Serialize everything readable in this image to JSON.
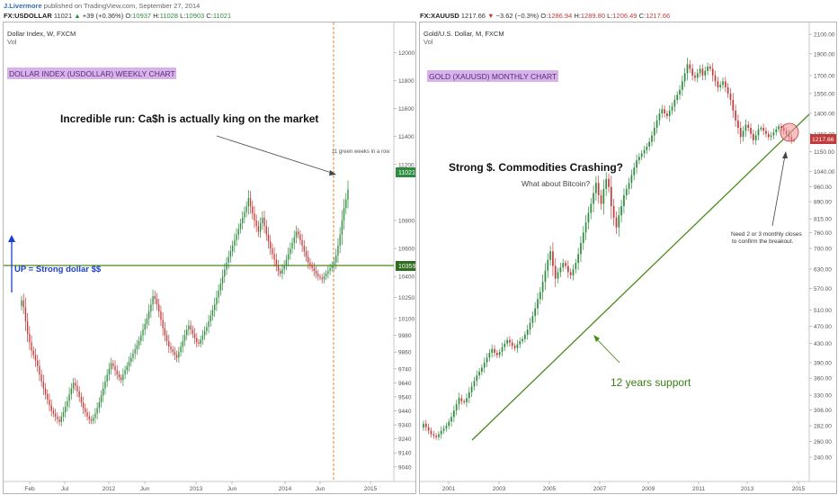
{
  "byline": {
    "author": "J.Livermore",
    "text": "published on TradingView.com, September 27, 2014"
  },
  "left_legend": {
    "symbol": "FX:USDOLLAR",
    "price": "11021",
    "arrow": "▲",
    "change": "+39 (+0.36%)",
    "o_label": "O:",
    "o": "10937",
    "h_label": "H:",
    "h": "11028",
    "l_label": "L:",
    "l": "10903",
    "c_label": "C:",
    "c": "11021"
  },
  "right_legend": {
    "symbol": "FX:XAUUSD",
    "price": "1217.66",
    "arrow": "▼",
    "change": "−3.62 (−0.3%)",
    "o_label": "O:",
    "o": "1286.94",
    "h_label": "H:",
    "h": "1289.80",
    "l_label": "L:",
    "l": "1206.49",
    "c_label": "C:",
    "c": "1217.66"
  },
  "colors": {
    "up": "#2e8b3e",
    "down": "#c23b3b",
    "support": "#4a8a1a",
    "highlight": "#d7b3ea",
    "vline": "#e8812b"
  },
  "chart_data": [
    {
      "type": "candlestick",
      "pane_title": "Dollar Index, W, FXCM",
      "volume_label": "Vol",
      "badge_title": "DOLLAR INDEX (USDOLLAR) WEEKLY CHART",
      "annotation_main": "Incredible run: Ca$h is actually king on the market",
      "annotation_small": "11 green weeks in a row",
      "support_label": "UP = Strong dollar $$",
      "x_ticks": [
        "Feb",
        "Jul",
        "2012",
        "Jun",
        "2013",
        "Jun",
        "2014",
        "Jun",
        "2015"
      ],
      "y_ticks": [
        "12000",
        "11800",
        "11600",
        "11400",
        "11200",
        "10800",
        "10600",
        "10400",
        "10250",
        "10100",
        "9980",
        "9860",
        "9740",
        "9640",
        "9540",
        "9440",
        "9340",
        "9240",
        "9140",
        "9040"
      ],
      "ylim": [
        9000,
        12150
      ],
      "last_value": "11021",
      "support_level": "10359",
      "series": [
        {
          "values": [
            10230,
            10180,
            10080,
            9990,
            9930,
            9870,
            9840,
            9800,
            9760,
            9700,
            9650,
            9600,
            9560,
            9520,
            9480,
            9440,
            9420,
            9400,
            9380,
            9360,
            9400,
            9430,
            9470,
            9510,
            9560,
            9600,
            9640,
            9620,
            9580,
            9540,
            9500,
            9460,
            9430,
            9400,
            9380,
            9370,
            9390,
            9420,
            9460,
            9500,
            9550,
            9600,
            9650,
            9700,
            9740,
            9780,
            9760,
            9730,
            9700,
            9680,
            9660,
            9700,
            9730,
            9760,
            9790,
            9820,
            9850,
            9880,
            9910,
            9940,
            9980,
            10020,
            10060,
            10100,
            10150,
            10200,
            10260,
            10240,
            10200,
            10150,
            10090,
            10030,
            9980,
            9940,
            9900,
            9880,
            9860,
            9840,
            9820,
            9860,
            9900,
            9940,
            9980,
            10020,
            10050,
            10020,
            9990,
            9960,
            9930,
            9920,
            9950,
            9980,
            10010,
            10040,
            10080,
            10120,
            10160,
            10200,
            10250,
            10300,
            10350,
            10400,
            10450,
            10500,
            10540,
            10580,
            10620,
            10660,
            10700,
            10740,
            10780,
            10820,
            10860,
            10900,
            10960,
            10900,
            10850,
            10800,
            10760,
            10720,
            10780,
            10820,
            10760,
            10700,
            10650,
            10600,
            10560,
            10520,
            10480,
            10440,
            10420,
            10450,
            10480,
            10520,
            10560,
            10600,
            10640,
            10680,
            10720,
            10700,
            10660,
            10620,
            10580,
            10540,
            10500,
            10480,
            10460,
            10440,
            10420,
            10400,
            10390,
            10380,
            10400,
            10420,
            10440,
            10460,
            10480,
            10500,
            10550,
            10620,
            10700,
            10800,
            10890,
            10950,
            11021
          ]
        }
      ]
    },
    {
      "type": "candlestick",
      "pane_title": "Gold/U.S. Dollar, M, FXCM",
      "volume_label": "Vol",
      "badge_title": "GOLD (XAUUSD) MONTHLY CHART",
      "annotation_main": "Strong $. Commodities Crashing?",
      "annotation_sub": "What about Bitcoin?",
      "annotation_note": [
        "Need 2 or 3 monthly closes",
        "to confirm the breakout."
      ],
      "support_label": "12 years support",
      "x_ticks": [
        "2001",
        "2003",
        "2005",
        "2007",
        "2009",
        "2011",
        "2013",
        "2015"
      ],
      "y_ticks": [
        "2100.00",
        "1900.00",
        "1700.00",
        "1550.00",
        "1400.00",
        "1260.00",
        "1150.00",
        "1040.00",
        "960.00",
        "890.00",
        "815.00",
        "760.00",
        "700.00",
        "630.00",
        "570.00",
        "510.00",
        "470.00",
        "430.00",
        "390.00",
        "360.00",
        "330.00",
        "306.00",
        "282.00",
        "260.00",
        "240.00"
      ],
      "ylim": [
        225,
        2150
      ],
      "last_value": "1217.66",
      "series": [
        {
          "values": [
            285,
            280,
            275,
            270,
            268,
            266,
            270,
            275,
            278,
            282,
            288,
            295,
            305,
            315,
            325,
            320,
            318,
            325,
            335,
            345,
            355,
            365,
            372,
            380,
            390,
            400,
            410,
            418,
            410,
            405,
            412,
            422,
            430,
            438,
            432,
            425,
            420,
            428,
            435,
            440,
            450,
            462,
            478,
            495,
            515,
            540,
            560,
            590,
            625,
            660,
            690,
            640,
            600,
            620,
            635,
            650,
            640,
            620,
            610,
            630,
            650,
            680,
            720,
            760,
            800,
            840,
            880,
            930,
            980,
            920,
            880,
            950,
            1000,
            960,
            870,
            820,
            780,
            830,
            870,
            920,
            950,
            980,
            1020,
            1060,
            1100,
            1120,
            1140,
            1160,
            1180,
            1210,
            1250,
            1300,
            1350,
            1400,
            1430,
            1400,
            1380,
            1420,
            1450,
            1500,
            1540,
            1580,
            1650,
            1720,
            1800,
            1760,
            1700,
            1680,
            1720,
            1760,
            1700,
            1740,
            1780,
            1760,
            1700,
            1650,
            1600,
            1620,
            1650,
            1600,
            1550,
            1500,
            1420,
            1350,
            1300,
            1240,
            1280,
            1320,
            1300,
            1260,
            1220,
            1250,
            1290,
            1300,
            1280,
            1260,
            1240,
            1250,
            1270,
            1290,
            1310,
            1300,
            1280,
            1260,
            1240,
            1220,
            1217.66
          ]
        }
      ]
    }
  ]
}
